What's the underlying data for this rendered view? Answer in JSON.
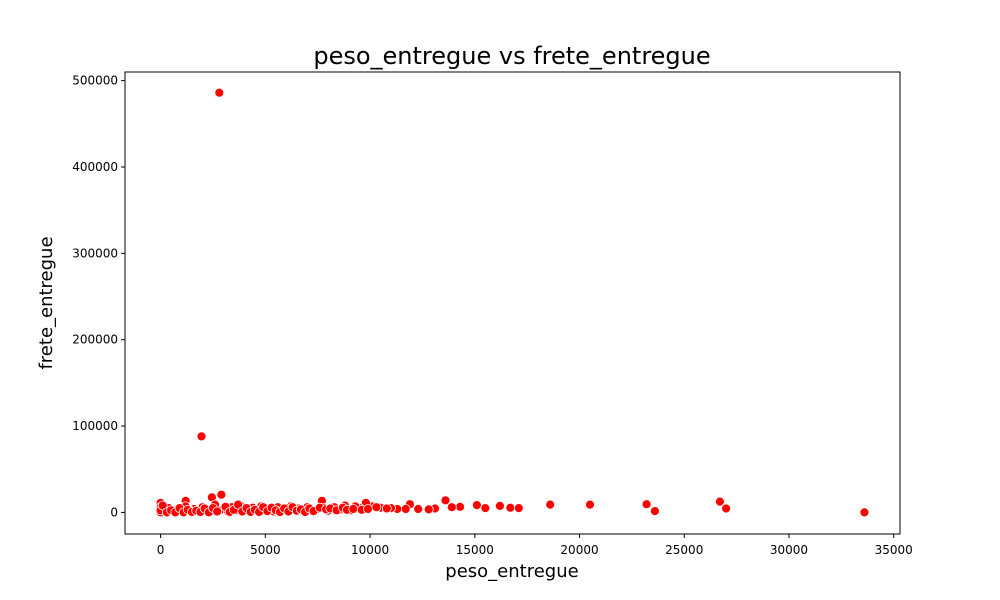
{
  "chart_data": {
    "type": "scatter",
    "title": "peso_entregue vs frete_entregue",
    "xlabel": "peso_entregue",
    "ylabel": "frete_entregue",
    "xlim": [
      -1700,
      35300
    ],
    "ylim": [
      -25000,
      510000
    ],
    "x_ticks": [
      0,
      5000,
      10000,
      15000,
      20000,
      25000,
      30000,
      35000
    ],
    "x_tick_labels": [
      "0",
      "5000",
      "10000",
      "15000",
      "20000",
      "25000",
      "30000",
      "35000"
    ],
    "y_ticks": [
      0,
      100000,
      200000,
      300000,
      400000,
      500000
    ],
    "y_tick_labels": [
      "0",
      "100000",
      "200000",
      "300000",
      "400000",
      "500000"
    ],
    "grid": false,
    "marker_color": "#ff0000",
    "marker_edge_color": "#ffffff",
    "points": [
      [
        2800,
        486000
      ],
      [
        1950,
        88000
      ],
      [
        2900,
        20500
      ],
      [
        2450,
        17500
      ],
      [
        1200,
        13500
      ],
      [
        7700,
        13500
      ],
      [
        13600,
        14000
      ],
      [
        26700,
        12500
      ],
      [
        23200,
        9500
      ],
      [
        20500,
        9000
      ],
      [
        18600,
        9000
      ],
      [
        15100,
        8500
      ],
      [
        16200,
        7500
      ],
      [
        16700,
        5500
      ],
      [
        17100,
        5000
      ],
      [
        15500,
        5000
      ],
      [
        27000,
        4500
      ],
      [
        23600,
        1500
      ],
      [
        33600,
        0
      ],
      [
        14300,
        6500
      ],
      [
        13900,
        6000
      ],
      [
        13100,
        4500
      ],
      [
        12800,
        3500
      ],
      [
        12300,
        4000
      ],
      [
        11900,
        9500
      ],
      [
        11700,
        4000
      ],
      [
        11300,
        4000
      ],
      [
        11000,
        5000
      ],
      [
        10500,
        5500
      ],
      [
        10100,
        7000
      ],
      [
        9800,
        11000
      ],
      [
        9500,
        5000
      ],
      [
        9300,
        7000
      ],
      [
        9100,
        2500
      ],
      [
        8800,
        8000
      ],
      [
        8600,
        3500
      ],
      [
        8300,
        6000
      ],
      [
        8000,
        2000
      ],
      [
        7800,
        5000
      ],
      [
        7500,
        4000
      ],
      [
        7200,
        2500
      ],
      [
        7000,
        6000
      ],
      [
        6800,
        1500
      ],
      [
        6600,
        4500
      ],
      [
        6400,
        3000
      ],
      [
        6200,
        7000
      ],
      [
        6000,
        5000
      ],
      [
        5800,
        2500
      ],
      [
        5600,
        6000
      ],
      [
        5400,
        1000
      ],
      [
        5200,
        4000
      ],
      [
        5000,
        3000
      ],
      [
        4800,
        7000
      ],
      [
        4600,
        2000
      ],
      [
        4400,
        5500
      ],
      [
        4200,
        1500
      ],
      [
        4000,
        3500
      ],
      [
        3800,
        8000
      ],
      [
        3600,
        2500
      ],
      [
        3400,
        6000
      ],
      [
        3200,
        1000
      ],
      [
        3000,
        4000
      ],
      [
        2800,
        2000
      ],
      [
        2600,
        9000
      ],
      [
        2400,
        3000
      ],
      [
        2200,
        1500
      ],
      [
        2000,
        6000
      ],
      [
        1800,
        500
      ],
      [
        1600,
        4000
      ],
      [
        1400,
        2000
      ],
      [
        1200,
        7000
      ],
      [
        1000,
        1500
      ],
      [
        800,
        3000
      ],
      [
        600,
        500
      ],
      [
        400,
        5000
      ],
      [
        200,
        1000
      ],
      [
        0,
        11000
      ],
      [
        0,
        0
      ],
      [
        0,
        6000
      ],
      [
        0,
        2500
      ],
      [
        100,
        8000
      ],
      [
        300,
        0
      ],
      [
        500,
        2500
      ],
      [
        700,
        0
      ],
      [
        900,
        5000
      ],
      [
        1100,
        0
      ],
      [
        1300,
        3000
      ],
      [
        1500,
        500
      ],
      [
        1700,
        2000
      ],
      [
        1900,
        500
      ],
      [
        2100,
        4500
      ],
      [
        2300,
        0
      ],
      [
        2500,
        5000
      ],
      [
        2700,
        1000
      ],
      [
        3100,
        6500
      ],
      [
        3300,
        500
      ],
      [
        3500,
        3000
      ],
      [
        3700,
        9000
      ],
      [
        3900,
        1000
      ],
      [
        4100,
        5000
      ],
      [
        4300,
        500
      ],
      [
        4500,
        3000
      ],
      [
        4700,
        500
      ],
      [
        4900,
        6000
      ],
      [
        5100,
        1500
      ],
      [
        5300,
        5500
      ],
      [
        5500,
        2500
      ],
      [
        5700,
        500
      ],
      [
        5900,
        4500
      ],
      [
        6100,
        1000
      ],
      [
        6300,
        6000
      ],
      [
        6500,
        2000
      ],
      [
        6700,
        3500
      ],
      [
        6900,
        500
      ],
      [
        7100,
        4500
      ],
      [
        7300,
        1500
      ],
      [
        7600,
        5500
      ],
      [
        7900,
        3500
      ],
      [
        8100,
        4500
      ],
      [
        8400,
        2500
      ],
      [
        8700,
        5500
      ],
      [
        8900,
        3000
      ],
      [
        9200,
        4000
      ],
      [
        9600,
        3000
      ],
      [
        9900,
        4000
      ],
      [
        10300,
        6000
      ],
      [
        10800,
        4500
      ]
    ]
  }
}
